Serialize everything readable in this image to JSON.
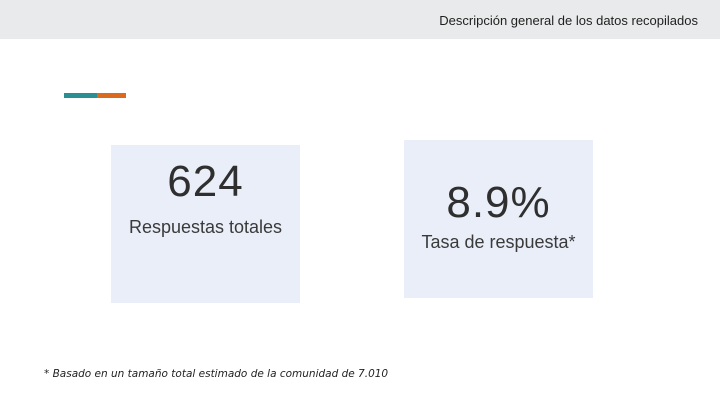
{
  "header": {
    "title": "Descripción general de los datos recopilados"
  },
  "stats": [
    {
      "value": "624",
      "label": "Respuestas totales"
    },
    {
      "value": "8.9%",
      "label": "Tasa de respuesta*"
    }
  ],
  "footnote": "* Basado en un tamaño total estimado de la comunidad de 7.010",
  "colors": {
    "accent_teal": "#2a8f93",
    "accent_orange": "#d96a1e",
    "card_bg": "#e9eef9"
  }
}
